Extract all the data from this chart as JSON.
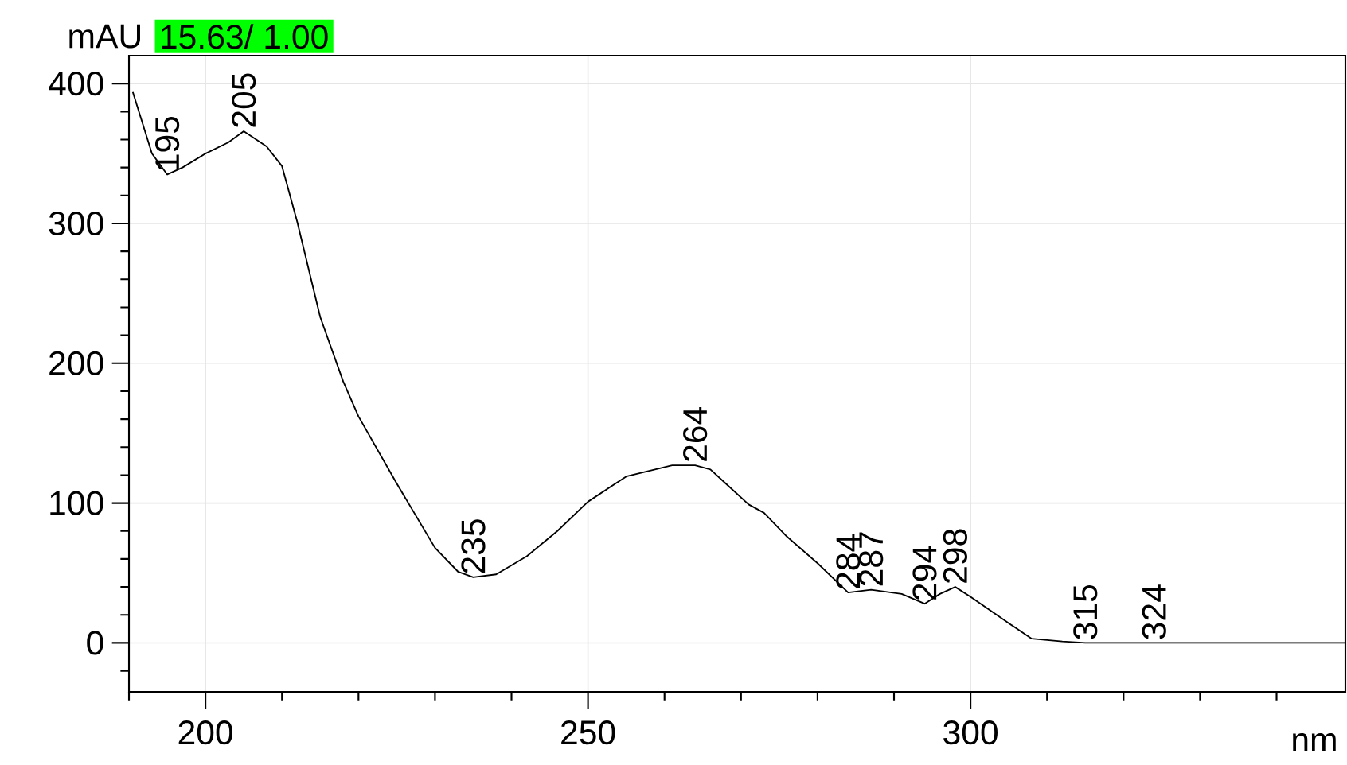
{
  "chart_data": {
    "type": "line",
    "xlabel": "nm",
    "ylabel": "mAU",
    "x": [
      190.5,
      193,
      195,
      197,
      200,
      203,
      205,
      208,
      210,
      212,
      215,
      218,
      220,
      225,
      230,
      233,
      235,
      238,
      242,
      246,
      250,
      255,
      258,
      261,
      264,
      266,
      268,
      271,
      273,
      276,
      280,
      284,
      287,
      291,
      294,
      296,
      298,
      300,
      305,
      308,
      312,
      315,
      324,
      340,
      349
    ],
    "series": [
      {
        "color": "#000000",
        "values": [
          394,
          350,
          335,
          340,
          350,
          358,
          366,
          355,
          341,
          301,
          233,
          187,
          162,
          114,
          68,
          51,
          47,
          49,
          62,
          80,
          101,
          119,
          123,
          127,
          127,
          124,
          114,
          99,
          93,
          76,
          57,
          36,
          38,
          35,
          28,
          35,
          40,
          33,
          14,
          3,
          1,
          0,
          0,
          0,
          0
        ]
      }
    ],
    "xlim": [
      190,
      349
    ],
    "ylim": [
      -35,
      420
    ],
    "xticks": [
      {
        "value": 190,
        "label": null
      },
      200,
      {
        "value": 210,
        "label": null
      },
      {
        "value": 220,
        "label": null
      },
      {
        "value": 230,
        "label": null
      },
      {
        "value": 240,
        "label": null
      },
      250,
      {
        "value": 260,
        "label": null
      },
      {
        "value": 270,
        "label": null
      },
      {
        "value": 280,
        "label": null
      },
      {
        "value": 290,
        "label": null
      },
      300,
      {
        "value": 310,
        "label": null
      },
      {
        "value": 320,
        "label": null
      },
      {
        "value": 330,
        "label": null
      },
      {
        "value": 340,
        "label": null
      }
    ],
    "yticks": [
      {
        "value": -20,
        "label": null
      },
      0,
      {
        "value": 20,
        "label": null
      },
      {
        "value": 40,
        "label": null
      },
      {
        "value": 60,
        "label": null
      },
      {
        "value": 80,
        "label": null
      },
      100,
      {
        "value": 120,
        "label": null
      },
      {
        "value": 140,
        "label": null
      },
      {
        "value": 160,
        "label": null
      },
      {
        "value": 180,
        "label": null
      },
      200,
      {
        "value": 220,
        "label": null
      },
      {
        "value": 240,
        "label": null
      },
      {
        "value": 260,
        "label": null
      },
      {
        "value": 280,
        "label": null
      },
      300,
      {
        "value": 320,
        "label": null
      },
      {
        "value": 340,
        "label": null
      },
      {
        "value": 360,
        "label": null
      },
      {
        "value": 380,
        "label": null
      },
      400
    ],
    "grid": true,
    "annotations": [
      "15.63/ 1.00",
      {
        "text": "195",
        "x": 195,
        "y": 335
      },
      {
        "text": "205",
        "x": 205,
        "y": 366
      },
      {
        "text": "235",
        "x": 235,
        "y": 47
      },
      {
        "text": "264",
        "x": 264,
        "y": 127
      },
      {
        "text": "284",
        "x": 284,
        "y": 36
      },
      {
        "text": "287",
        "x": 287,
        "y": 38
      },
      {
        "text": "294",
        "x": 294,
        "y": 28
      },
      {
        "text": "298",
        "x": 298,
        "y": 40
      },
      {
        "text": "315",
        "x": 315,
        "y": 0
      },
      {
        "text": "324",
        "x": 324,
        "y": 0
      }
    ]
  }
}
